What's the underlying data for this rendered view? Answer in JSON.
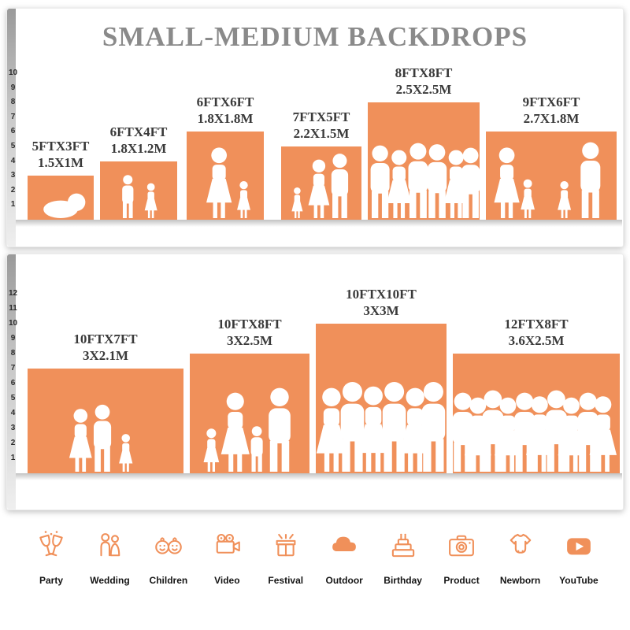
{
  "title": "SMALL-MEDIUM BACKDROPS",
  "colors": {
    "accent": "#F0905A",
    "panel_bg": "#FFFFFF",
    "title_gray": "#8A8A8A",
    "label_dark": "#3A3A3A"
  },
  "chart_data": [
    {
      "type": "bar",
      "panel": "top",
      "title": "SMALL-MEDIUM BACKDROPS",
      "axis_ticks": [
        1,
        2,
        3,
        4,
        5,
        6,
        7,
        8,
        9,
        10
      ],
      "axis_unit": "ft",
      "items": [
        {
          "label_ft": "5FTX3FT",
          "label_m": "1.5X1M",
          "width_ft": 5,
          "height_ft": 3,
          "figures": [
            {
              "type": "baby",
              "x": 0.5,
              "s": 0.5
            }
          ]
        },
        {
          "label_ft": "6FTX4FT",
          "label_m": "1.8X1.2M",
          "width_ft": 6,
          "height_ft": 4,
          "figures": [
            {
              "type": "boy",
              "x": 0.36,
              "s": 0.74
            },
            {
              "type": "girl",
              "x": 0.66,
              "s": 0.6
            }
          ]
        },
        {
          "label_ft": "6FTX6FT",
          "label_m": "1.8X1.8M",
          "width_ft": 6,
          "height_ft": 6,
          "figures": [
            {
              "type": "woman",
              "x": 0.42,
              "s": 0.8
            },
            {
              "type": "girl",
              "x": 0.74,
              "s": 0.42
            }
          ]
        },
        {
          "label_ft": "7FTX5FT",
          "label_m": "2.2X1.5M",
          "width_ft": 7,
          "height_ft": 5,
          "figures": [
            {
              "type": "girl",
              "x": 0.2,
              "s": 0.42
            },
            {
              "type": "woman",
              "x": 0.47,
              "s": 0.8
            },
            {
              "type": "man",
              "x": 0.73,
              "s": 0.88
            }
          ]
        },
        {
          "label_ft": "8FTX8FT",
          "label_m": "2.5X2.5M",
          "width_ft": 8,
          "height_ft": 8,
          "figures": [
            {
              "type": "man",
              "x": 0.11,
              "s": 0.62
            },
            {
              "type": "woman",
              "x": 0.28,
              "s": 0.58
            },
            {
              "type": "man",
              "x": 0.45,
              "s": 0.64
            },
            {
              "type": "man",
              "x": 0.62,
              "s": 0.63
            },
            {
              "type": "woman",
              "x": 0.79,
              "s": 0.58
            },
            {
              "type": "man",
              "x": 0.92,
              "s": 0.6
            }
          ]
        },
        {
          "label_ft": "9FTX6FT",
          "label_m": "2.7X1.8M",
          "width_ft": 9,
          "height_ft": 6,
          "figures": [
            {
              "type": "woman",
              "x": 0.16,
              "s": 0.8
            },
            {
              "type": "girl",
              "x": 0.32,
              "s": 0.44
            },
            {
              "type": "girl",
              "x": 0.6,
              "s": 0.42
            },
            {
              "type": "man",
              "x": 0.8,
              "s": 0.86
            }
          ]
        }
      ]
    },
    {
      "type": "bar",
      "panel": "bottom",
      "axis_ticks": [
        1,
        2,
        3,
        4,
        5,
        6,
        7,
        8,
        9,
        10,
        11,
        12
      ],
      "axis_unit": "ft",
      "items": [
        {
          "label_ft": "10FTX7FT",
          "label_m": "3X2.1M",
          "width_ft": 10,
          "height_ft": 7,
          "figures": [
            {
              "type": "woman",
              "x": 0.34,
              "s": 0.6
            },
            {
              "type": "man",
              "x": 0.48,
              "s": 0.64
            },
            {
              "type": "girl",
              "x": 0.63,
              "s": 0.36
            }
          ]
        },
        {
          "label_ft": "10FTX8FT",
          "label_m": "3X2.5M",
          "width_ft": 10,
          "height_ft": 8,
          "figures": [
            {
              "type": "girl",
              "x": 0.18,
              "s": 0.36
            },
            {
              "type": "woman",
              "x": 0.38,
              "s": 0.66
            },
            {
              "type": "boy",
              "x": 0.56,
              "s": 0.38
            },
            {
              "type": "man",
              "x": 0.75,
              "s": 0.7
            }
          ]
        },
        {
          "label_ft": "10FTX10FT",
          "label_m": "3X3M",
          "width_ft": 10,
          "height_ft": 10,
          "figures": [
            {
              "type": "woman",
              "x": 0.12,
              "s": 0.56
            },
            {
              "type": "man",
              "x": 0.28,
              "s": 0.6
            },
            {
              "type": "woman",
              "x": 0.44,
              "s": 0.57
            },
            {
              "type": "man",
              "x": 0.6,
              "s": 0.6
            },
            {
              "type": "woman",
              "x": 0.76,
              "s": 0.56
            },
            {
              "type": "man",
              "x": 0.9,
              "s": 0.6
            }
          ]
        },
        {
          "label_ft": "12FTX8FT",
          "label_m": "3.6X2.5M",
          "width_ft": 12,
          "height_ft": 8,
          "figures": [
            {
              "type": "man",
              "x": 0.06,
              "s": 0.66
            },
            {
              "type": "woman",
              "x": 0.15,
              "s": 0.62
            },
            {
              "type": "man",
              "x": 0.24,
              "s": 0.68
            },
            {
              "type": "woman",
              "x": 0.33,
              "s": 0.62
            },
            {
              "type": "man",
              "x": 0.43,
              "s": 0.66
            },
            {
              "type": "woman",
              "x": 0.52,
              "s": 0.63
            },
            {
              "type": "man",
              "x": 0.62,
              "s": 0.68
            },
            {
              "type": "woman",
              "x": 0.71,
              "s": 0.62
            },
            {
              "type": "man",
              "x": 0.81,
              "s": 0.66
            },
            {
              "type": "woman",
              "x": 0.9,
              "s": 0.63
            }
          ]
        }
      ]
    }
  ],
  "categories": [
    {
      "label": "Party",
      "icon": "party-icon"
    },
    {
      "label": "Wedding",
      "icon": "wedding-icon"
    },
    {
      "label": "Children",
      "icon": "children-icon"
    },
    {
      "label": "Video",
      "icon": "video-icon"
    },
    {
      "label": "Festival",
      "icon": "festival-icon"
    },
    {
      "label": "Outdoor",
      "icon": "outdoor-icon"
    },
    {
      "label": "Birthday",
      "icon": "birthday-icon"
    },
    {
      "label": "Product",
      "icon": "product-icon"
    },
    {
      "label": "Newborn",
      "icon": "newborn-icon"
    },
    {
      "label": "YouTube",
      "icon": "youtube-icon"
    }
  ]
}
